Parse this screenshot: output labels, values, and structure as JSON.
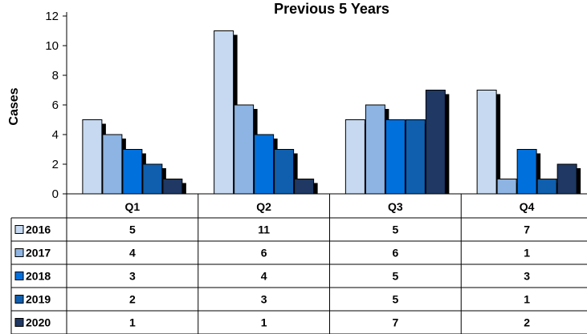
{
  "chart_data": {
    "type": "bar",
    "title": "Previous 5 Years",
    "ylabel": "Cases",
    "xlabel": "",
    "ylim": [
      0,
      12
    ],
    "yticks": [
      0,
      2,
      4,
      6,
      8,
      10,
      12
    ],
    "categories": [
      "Q1",
      "Q2",
      "Q3",
      "Q4"
    ],
    "series": [
      {
        "name": "2016",
        "values": [
          5,
          11,
          5,
          7
        ],
        "color": "#c6d9f1"
      },
      {
        "name": "2017",
        "values": [
          4,
          6,
          6,
          1
        ],
        "color": "#8db4e2"
      },
      {
        "name": "2018",
        "values": [
          3,
          4,
          5,
          3
        ],
        "color": "#0070dd"
      },
      {
        "name": "2019",
        "values": [
          2,
          3,
          5,
          1
        ],
        "color": "#0f5fae"
      },
      {
        "name": "2020",
        "values": [
          1,
          1,
          7,
          2
        ],
        "color": "#1f3864"
      }
    ],
    "shadow_color": "#000000",
    "grid": false,
    "legend": "data-table"
  }
}
